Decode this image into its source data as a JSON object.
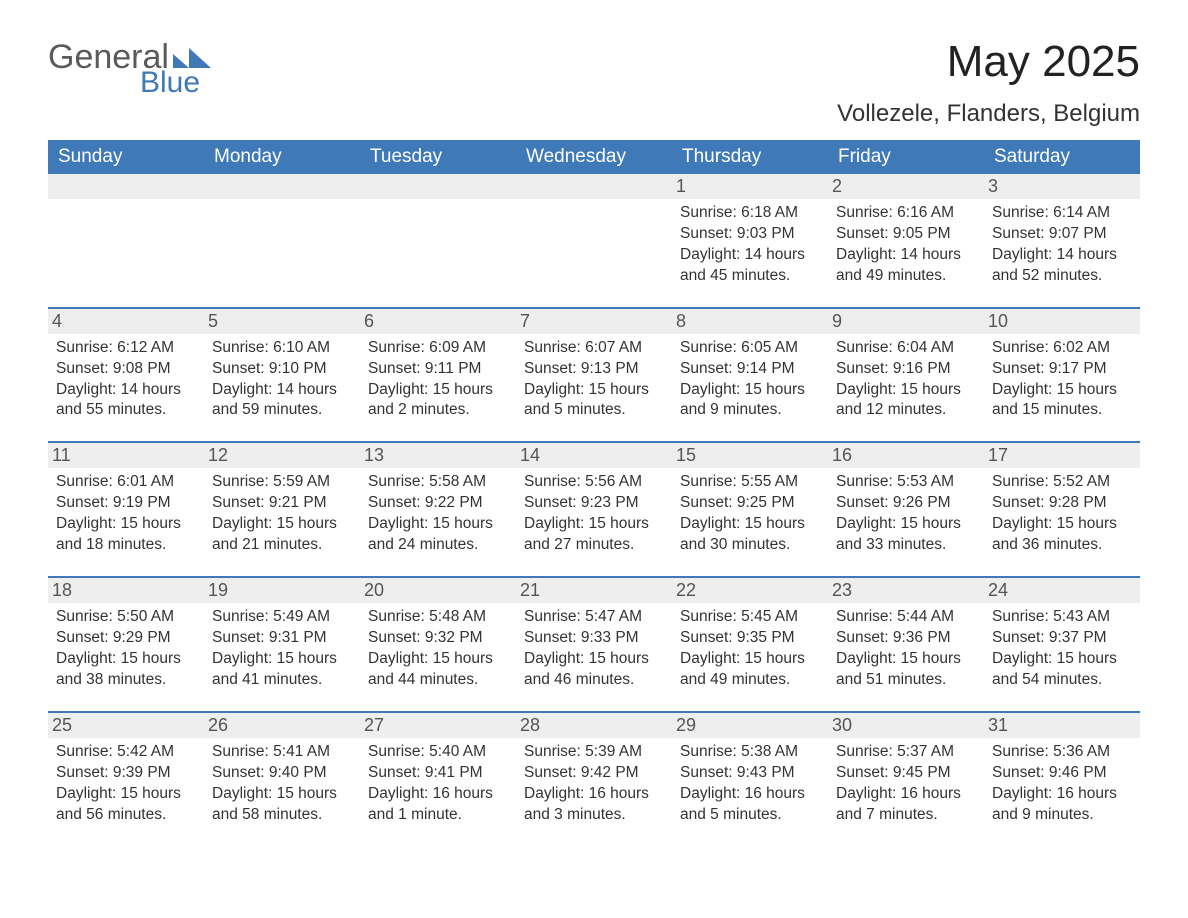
{
  "brand": {
    "name_part1": "General",
    "name_part2": "Blue",
    "mark_color": "#3f79b7",
    "text_color_top": "#5a5a5a",
    "text_color_bottom": "#3f79b7"
  },
  "header": {
    "month_title": "May 2025",
    "location": "Vollezele, Flanders, Belgium"
  },
  "styling": {
    "header_bg": "#3f79b7",
    "header_text": "#ffffff",
    "row_divider": "#3f79b7",
    "daynum_bg": "#eeeeee",
    "daynum_text": "#555555",
    "body_text": "#333333",
    "page_bg": "#ffffff",
    "header_fontsize": 19,
    "daynum_fontsize": 18,
    "body_fontsize": 15.5,
    "title_fontsize": 44,
    "location_fontsize": 24
  },
  "calendar": {
    "columns": [
      "Sunday",
      "Monday",
      "Tuesday",
      "Wednesday",
      "Thursday",
      "Friday",
      "Saturday"
    ],
    "weeks": [
      [
        null,
        null,
        null,
        null,
        {
          "day": "1",
          "sunrise": "Sunrise: 6:18 AM",
          "sunset": "Sunset: 9:03 PM",
          "daylight": "Daylight: 14 hours and 45 minutes."
        },
        {
          "day": "2",
          "sunrise": "Sunrise: 6:16 AM",
          "sunset": "Sunset: 9:05 PM",
          "daylight": "Daylight: 14 hours and 49 minutes."
        },
        {
          "day": "3",
          "sunrise": "Sunrise: 6:14 AM",
          "sunset": "Sunset: 9:07 PM",
          "daylight": "Daylight: 14 hours and 52 minutes."
        }
      ],
      [
        {
          "day": "4",
          "sunrise": "Sunrise: 6:12 AM",
          "sunset": "Sunset: 9:08 PM",
          "daylight": "Daylight: 14 hours and 55 minutes."
        },
        {
          "day": "5",
          "sunrise": "Sunrise: 6:10 AM",
          "sunset": "Sunset: 9:10 PM",
          "daylight": "Daylight: 14 hours and 59 minutes."
        },
        {
          "day": "6",
          "sunrise": "Sunrise: 6:09 AM",
          "sunset": "Sunset: 9:11 PM",
          "daylight": "Daylight: 15 hours and 2 minutes."
        },
        {
          "day": "7",
          "sunrise": "Sunrise: 6:07 AM",
          "sunset": "Sunset: 9:13 PM",
          "daylight": "Daylight: 15 hours and 5 minutes."
        },
        {
          "day": "8",
          "sunrise": "Sunrise: 6:05 AM",
          "sunset": "Sunset: 9:14 PM",
          "daylight": "Daylight: 15 hours and 9 minutes."
        },
        {
          "day": "9",
          "sunrise": "Sunrise: 6:04 AM",
          "sunset": "Sunset: 9:16 PM",
          "daylight": "Daylight: 15 hours and 12 minutes."
        },
        {
          "day": "10",
          "sunrise": "Sunrise: 6:02 AM",
          "sunset": "Sunset: 9:17 PM",
          "daylight": "Daylight: 15 hours and 15 minutes."
        }
      ],
      [
        {
          "day": "11",
          "sunrise": "Sunrise: 6:01 AM",
          "sunset": "Sunset: 9:19 PM",
          "daylight": "Daylight: 15 hours and 18 minutes."
        },
        {
          "day": "12",
          "sunrise": "Sunrise: 5:59 AM",
          "sunset": "Sunset: 9:21 PM",
          "daylight": "Daylight: 15 hours and 21 minutes."
        },
        {
          "day": "13",
          "sunrise": "Sunrise: 5:58 AM",
          "sunset": "Sunset: 9:22 PM",
          "daylight": "Daylight: 15 hours and 24 minutes."
        },
        {
          "day": "14",
          "sunrise": "Sunrise: 5:56 AM",
          "sunset": "Sunset: 9:23 PM",
          "daylight": "Daylight: 15 hours and 27 minutes."
        },
        {
          "day": "15",
          "sunrise": "Sunrise: 5:55 AM",
          "sunset": "Sunset: 9:25 PM",
          "daylight": "Daylight: 15 hours and 30 minutes."
        },
        {
          "day": "16",
          "sunrise": "Sunrise: 5:53 AM",
          "sunset": "Sunset: 9:26 PM",
          "daylight": "Daylight: 15 hours and 33 minutes."
        },
        {
          "day": "17",
          "sunrise": "Sunrise: 5:52 AM",
          "sunset": "Sunset: 9:28 PM",
          "daylight": "Daylight: 15 hours and 36 minutes."
        }
      ],
      [
        {
          "day": "18",
          "sunrise": "Sunrise: 5:50 AM",
          "sunset": "Sunset: 9:29 PM",
          "daylight": "Daylight: 15 hours and 38 minutes."
        },
        {
          "day": "19",
          "sunrise": "Sunrise: 5:49 AM",
          "sunset": "Sunset: 9:31 PM",
          "daylight": "Daylight: 15 hours and 41 minutes."
        },
        {
          "day": "20",
          "sunrise": "Sunrise: 5:48 AM",
          "sunset": "Sunset: 9:32 PM",
          "daylight": "Daylight: 15 hours and 44 minutes."
        },
        {
          "day": "21",
          "sunrise": "Sunrise: 5:47 AM",
          "sunset": "Sunset: 9:33 PM",
          "daylight": "Daylight: 15 hours and 46 minutes."
        },
        {
          "day": "22",
          "sunrise": "Sunrise: 5:45 AM",
          "sunset": "Sunset: 9:35 PM",
          "daylight": "Daylight: 15 hours and 49 minutes."
        },
        {
          "day": "23",
          "sunrise": "Sunrise: 5:44 AM",
          "sunset": "Sunset: 9:36 PM",
          "daylight": "Daylight: 15 hours and 51 minutes."
        },
        {
          "day": "24",
          "sunrise": "Sunrise: 5:43 AM",
          "sunset": "Sunset: 9:37 PM",
          "daylight": "Daylight: 15 hours and 54 minutes."
        }
      ],
      [
        {
          "day": "25",
          "sunrise": "Sunrise: 5:42 AM",
          "sunset": "Sunset: 9:39 PM",
          "daylight": "Daylight: 15 hours and 56 minutes."
        },
        {
          "day": "26",
          "sunrise": "Sunrise: 5:41 AM",
          "sunset": "Sunset: 9:40 PM",
          "daylight": "Daylight: 15 hours and 58 minutes."
        },
        {
          "day": "27",
          "sunrise": "Sunrise: 5:40 AM",
          "sunset": "Sunset: 9:41 PM",
          "daylight": "Daylight: 16 hours and 1 minute."
        },
        {
          "day": "28",
          "sunrise": "Sunrise: 5:39 AM",
          "sunset": "Sunset: 9:42 PM",
          "daylight": "Daylight: 16 hours and 3 minutes."
        },
        {
          "day": "29",
          "sunrise": "Sunrise: 5:38 AM",
          "sunset": "Sunset: 9:43 PM",
          "daylight": "Daylight: 16 hours and 5 minutes."
        },
        {
          "day": "30",
          "sunrise": "Sunrise: 5:37 AM",
          "sunset": "Sunset: 9:45 PM",
          "daylight": "Daylight: 16 hours and 7 minutes."
        },
        {
          "day": "31",
          "sunrise": "Sunrise: 5:36 AM",
          "sunset": "Sunset: 9:46 PM",
          "daylight": "Daylight: 16 hours and 9 minutes."
        }
      ]
    ]
  }
}
